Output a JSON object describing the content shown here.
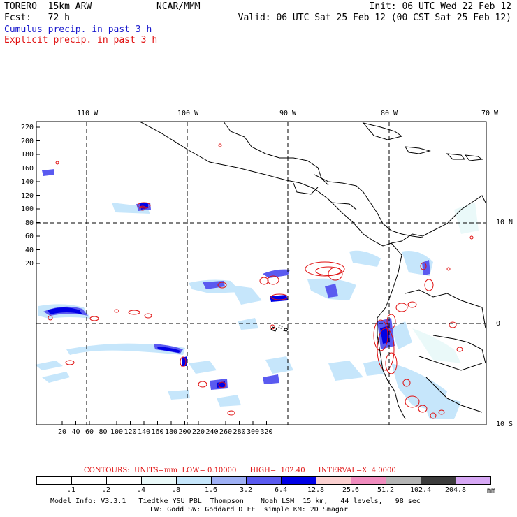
{
  "header": {
    "model": "TORERO  15km ARW",
    "org": "NCAR/MMM",
    "init": "Init: 06 UTC Wed 22 Feb 12",
    "fcst": "Fcst:   72 h",
    "valid": "Valid: 06 UTC Sat 25 Feb 12 (00 CST Sat 25 Feb 12)",
    "line_cumulus": "Cumulus precip. in past 3 h",
    "line_explicit": "Explicit precip. in past 3 h"
  },
  "lon_labels": [
    "110 W",
    "100 W",
    "90 W",
    "80 W",
    "70 W"
  ],
  "lat_labels": [
    "10 N",
    "0",
    "10 S"
  ],
  "y_ticks": [
    "220",
    "200",
    "180",
    "160",
    "140",
    "120",
    "100",
    "80",
    "60",
    "40",
    "20"
  ],
  "x_ticks": [
    "20",
    "40",
    "60",
    "80",
    "100",
    "120",
    "140",
    "160",
    "180",
    "200",
    "220",
    "240",
    "260",
    "280",
    "300",
    "320"
  ],
  "contours": {
    "label": "CONTOURS:  UNITS=mm  LOW= 0.10000      HIGH=  102.40      INTERVAL=X  4.0000"
  },
  "colorbar": {
    "labels": [
      ".1",
      ".2",
      ".4",
      ".8",
      "1.6",
      "3.2",
      "6.4",
      "12.8",
      "25.6",
      "51.2",
      "102.4",
      "204.8"
    ],
    "units": "mm",
    "colors": [
      "#ffffff",
      "#ffffff",
      "#ffffff",
      "#eaf9f9",
      "#c6e6fb",
      "#9eb0f5",
      "#5a5af0",
      "#0000e6",
      "#fbd0d0",
      "#f08cbe",
      "#b4b4b4",
      "#3c3c3c",
      "#d7a8f5"
    ]
  },
  "footer": {
    "line1": "Model Info: V3.3.1   Tiedtke YSU PBL  Thompson    Noah LSM  15 km,   44 levels,   98 sec",
    "line2": "LW: Godd SW: Goddard DIFF  simple KM: 2D Smagor"
  }
}
